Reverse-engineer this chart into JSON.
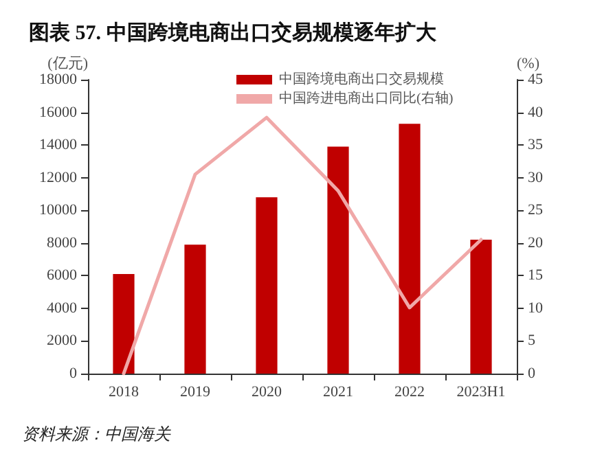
{
  "chart_data": {
    "type": "bar",
    "title": "图表 57. 中国跨境电商出口交易规模逐年扩大",
    "ylabel": "(亿元)",
    "y2label": "(%)",
    "annotations": [
      "资料来源：中国海关"
    ],
    "categories": [
      "2018",
      "2019",
      "2020",
      "2021",
      "2022",
      "2023H1"
    ],
    "series": [
      {
        "name": "中国跨境电商出口交易规模",
        "color": "#c00000",
        "values": [
          6100,
          7900,
          10800,
          13900,
          15300,
          8200
        ]
      },
      {
        "name": "中国跨进电商出口同比(右轴)",
        "type": "line",
        "axis": "y2",
        "color": "#f0a8a8",
        "values": [
          0,
          30.5,
          39.2,
          28,
          10.1,
          20.5
        ]
      }
    ],
    "ylim": [
      0,
      18000
    ],
    "yticks": [
      0,
      2000,
      4000,
      6000,
      8000,
      10000,
      12000,
      14000,
      16000,
      18000
    ],
    "y2lim": [
      0,
      45
    ],
    "y2ticks": [
      0,
      5,
      10,
      15,
      20,
      25,
      30,
      35,
      40,
      45
    ],
    "grid": false,
    "legend": "top",
    "marker": "none",
    "line_style": "solid"
  }
}
